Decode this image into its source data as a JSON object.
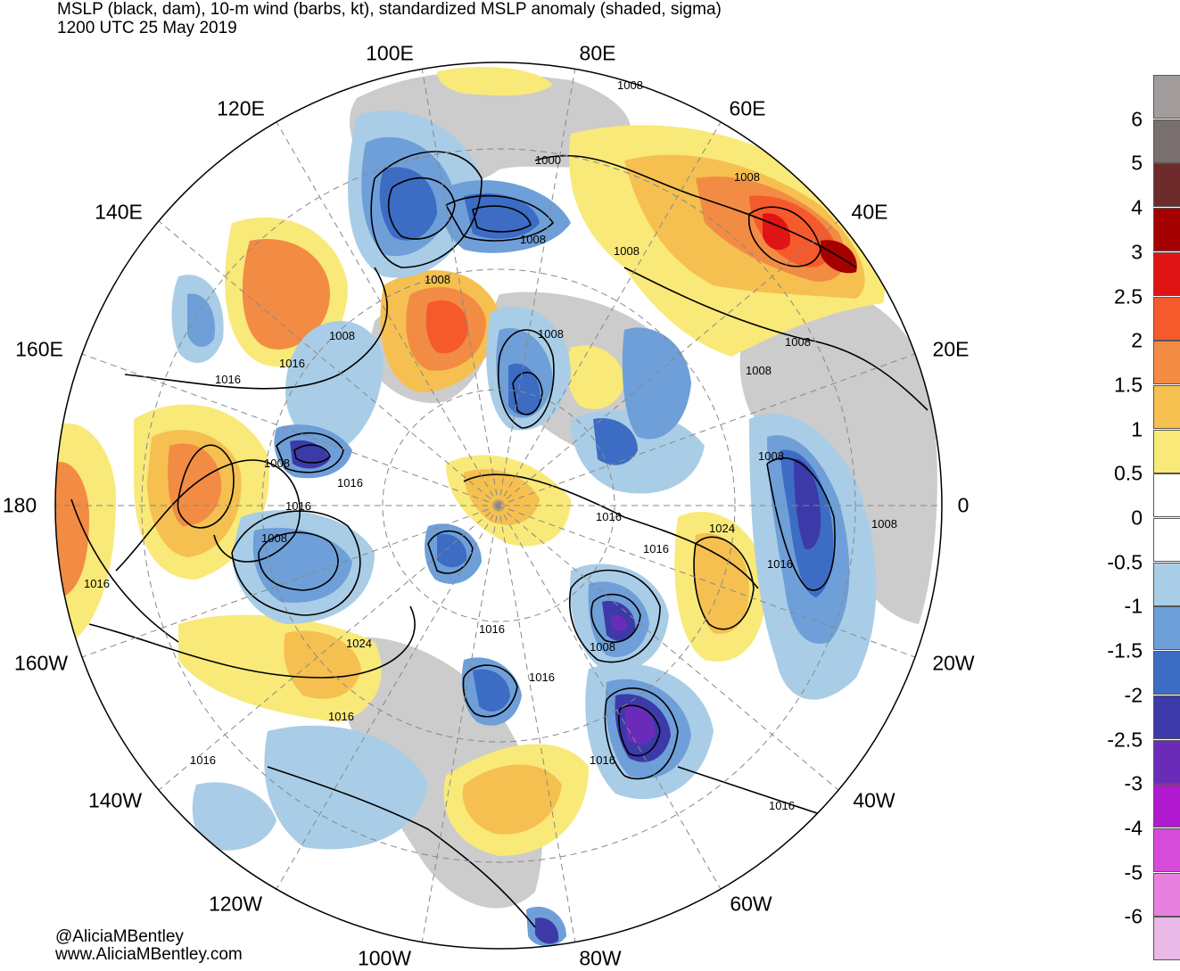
{
  "title": {
    "line1": "MSLP (black, dam), 10-m wind (barbs, kt), standardized MSLP anomaly (shaded, sigma)",
    "line2": "1200 UTC 25 May 2019"
  },
  "longitude_labels": {
    "lon_100E": "100E",
    "lon_80E": "80E",
    "lon_120E": "120E",
    "lon_60E": "60E",
    "lon_140E": "140E",
    "lon_40E": "40E",
    "lon_160E": "160E",
    "lon_20E": "20E",
    "lon_180": "180",
    "lon_0": "0",
    "lon_160W": "160W",
    "lon_20W": "20W",
    "lon_140W": "140W",
    "lon_40W": "40W",
    "lon_120W": "120W",
    "lon_60W": "60W",
    "lon_100W": "100W",
    "lon_80W": "80W"
  },
  "pressure_labels": [
    "1008",
    "1000",
    "1008",
    "1008",
    "1008",
    "1008",
    "1008",
    "1008",
    "1016",
    "1016",
    "1008",
    "1008",
    "1016",
    "1008",
    "1016",
    "1008",
    "1016",
    "1024",
    "1008",
    "1016",
    "1016",
    "1008",
    "1016",
    "1016",
    "1024",
    "1016",
    "1016",
    "1016",
    "1016",
    "1008",
    "1016"
  ],
  "colorbar": {
    "labels": [
      "6",
      "5",
      "4",
      "3",
      "2.5",
      "2",
      "1.5",
      "1",
      "0.5",
      "0",
      "-0.5",
      "-1",
      "-1.5",
      "-2",
      "-2.5",
      "-3",
      "-4",
      "-5",
      "-6"
    ],
    "colors": [
      "#a39c9c",
      "#7a6f6f",
      "#6e2b2b",
      "#a50000",
      "#e01414",
      "#f55a2c",
      "#f28c44",
      "#f5c050",
      "#f9e978",
      "#ffffff",
      "#ffffff",
      "#a9cde6",
      "#6f9fd8",
      "#3c6cc4",
      "#3c3aa8",
      "#6a2cb8",
      "#b019d0",
      "#d64bd9",
      "#e880e0",
      "#e8b8e6"
    ]
  },
  "credits": {
    "handle": "@AliciaMBentley",
    "site": "www.AliciaMBentley.com"
  }
}
